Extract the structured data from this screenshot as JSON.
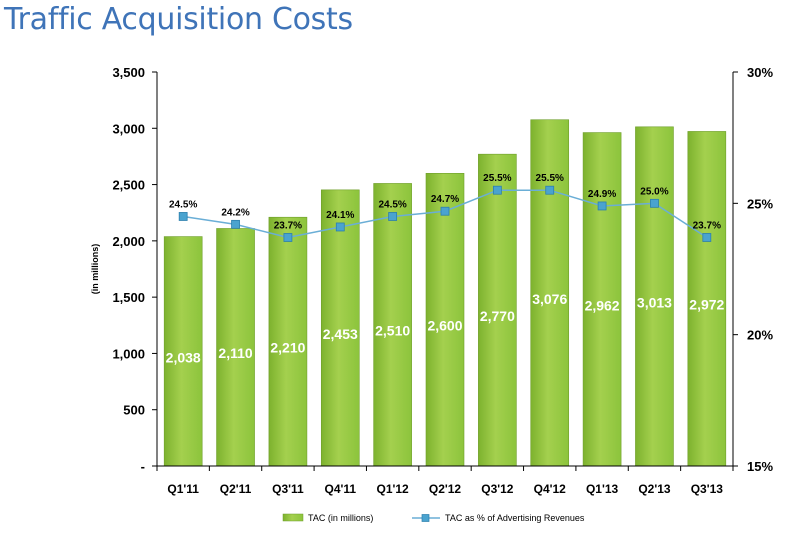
{
  "page": {
    "title": "Traffic Acquisition Costs"
  },
  "chart_data": {
    "type": "bar",
    "title": "Traffic Acquisition Costs",
    "ylabel": "(in millions)",
    "categories": [
      "Q1'11",
      "Q2'11",
      "Q3'11",
      "Q4'11",
      "Q1'12",
      "Q2'12",
      "Q3'12",
      "Q4'12",
      "Q1'13",
      "Q2'13",
      "Q3'13"
    ],
    "series": [
      {
        "name": "TAC (in millions)",
        "type": "bar",
        "axis": "left",
        "color": "#8cc43c",
        "values": [
          2038,
          2110,
          2210,
          2453,
          2510,
          2600,
          2770,
          3076,
          2962,
          3013,
          2972
        ],
        "labels": [
          "2,038",
          "2,110",
          "2,210",
          "2,453",
          "2,510",
          "2,600",
          "2,770",
          "3,076",
          "2,962",
          "3,013",
          "2,972"
        ]
      },
      {
        "name": "TAC as % of Advertising Revenues",
        "type": "line",
        "axis": "right",
        "color": "#6aaed6",
        "values": [
          24.5,
          24.2,
          23.7,
          24.1,
          24.5,
          24.7,
          25.5,
          25.5,
          24.9,
          25.0,
          23.7
        ],
        "labels": [
          "24.5%",
          "24.2%",
          "23.7%",
          "24.1%",
          "24.5%",
          "24.7%",
          "25.5%",
          "25.5%",
          "24.9%",
          "25.0%",
          "23.7%"
        ]
      }
    ],
    "ylim": [
      0,
      3500
    ],
    "y2lim": [
      15,
      30
    ],
    "yticks": [
      0,
      500,
      1000,
      1500,
      2000,
      2500,
      3000,
      3500
    ],
    "ytick_labels": [
      "-",
      "500",
      "1,000",
      "1,500",
      "2,000",
      "2,500",
      "3,000",
      "3,500"
    ],
    "y2ticks": [
      15,
      20,
      25,
      30
    ],
    "y2tick_labels": [
      "15%",
      "20%",
      "25%",
      "30%"
    ],
    "legend_position": "bottom",
    "grid": false
  }
}
